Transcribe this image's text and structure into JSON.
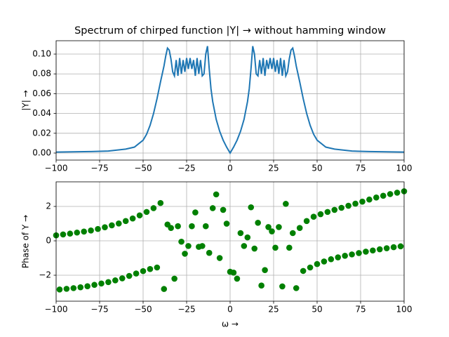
{
  "chart_data": [
    {
      "type": "line",
      "title": "Spectrum of chirped function |Y| → without hamming window",
      "ylabel": "|Y| →",
      "x": [
        -100,
        -80,
        -70,
        -60,
        -55,
        -50,
        -48,
        -46,
        -44,
        -42,
        -40,
        -38,
        -37,
        -36,
        -35,
        -34,
        -33,
        -32,
        -31,
        -30,
        -29,
        -28,
        -27,
        -26,
        -25,
        -24,
        -23,
        -22,
        -21,
        -20,
        -19,
        -18,
        -17,
        -16,
        -15,
        -14,
        -13,
        -12,
        -11,
        -10,
        -8,
        -6,
        -4,
        -2,
        0,
        2,
        4,
        6,
        8,
        10,
        11,
        12,
        13,
        14,
        15,
        16,
        17,
        18,
        19,
        20,
        21,
        22,
        23,
        24,
        25,
        26,
        27,
        28,
        29,
        30,
        31,
        32,
        33,
        34,
        35,
        36,
        37,
        38,
        40,
        42,
        44,
        46,
        48,
        50,
        55,
        60,
        70,
        80,
        100
      ],
      "values": [
        0.001,
        0.0015,
        0.002,
        0.004,
        0.006,
        0.013,
        0.019,
        0.028,
        0.04,
        0.055,
        0.072,
        0.088,
        0.098,
        0.106,
        0.104,
        0.095,
        0.082,
        0.078,
        0.094,
        0.078,
        0.096,
        0.08,
        0.094,
        0.082,
        0.096,
        0.085,
        0.096,
        0.085,
        0.094,
        0.078,
        0.096,
        0.08,
        0.094,
        0.078,
        0.08,
        0.1,
        0.108,
        0.085,
        0.065,
        0.052,
        0.034,
        0.022,
        0.013,
        0.006,
        0.0,
        0.006,
        0.013,
        0.022,
        0.034,
        0.052,
        0.065,
        0.085,
        0.108,
        0.1,
        0.08,
        0.078,
        0.094,
        0.08,
        0.096,
        0.078,
        0.094,
        0.085,
        0.096,
        0.085,
        0.096,
        0.082,
        0.094,
        0.08,
        0.096,
        0.078,
        0.094,
        0.078,
        0.082,
        0.095,
        0.104,
        0.106,
        0.098,
        0.088,
        0.072,
        0.055,
        0.04,
        0.028,
        0.019,
        0.013,
        0.006,
        0.004,
        0.002,
        0.0015,
        0.001
      ],
      "color": "#1f77b4",
      "xlim": [
        -100,
        100
      ],
      "xticks": [
        {
          "value": -100,
          "label": "−100"
        },
        {
          "value": -75,
          "label": "−75"
        },
        {
          "value": -50,
          "label": "−50"
        },
        {
          "value": -25,
          "label": "−25"
        },
        0,
        25,
        50,
        75,
        100
      ],
      "ylim": [
        -0.0071,
        0.1135
      ],
      "yticks": [
        {
          "value": 0,
          "label": "0.00"
        },
        {
          "value": 0.02,
          "label": "0.02"
        },
        {
          "value": 0.04,
          "label": "0.04"
        },
        {
          "value": 0.06,
          "label": "0.06"
        },
        {
          "value": 0.08,
          "label": "0.08"
        },
        {
          "value": 0.1,
          "label": "0.10"
        }
      ],
      "grid": true
    },
    {
      "type": "scatter",
      "ylabel": "Phase of Y →",
      "xlabel": "ω →",
      "x": [
        -100,
        -98,
        -96,
        -94,
        -92,
        -90,
        -88,
        -86,
        -84,
        -82,
        -80,
        -78,
        -76,
        -74,
        -72,
        -70,
        -68,
        -66,
        -64,
        -62,
        -60,
        -58,
        -56,
        -54,
        -52,
        -50,
        -48,
        -46,
        -44,
        -42,
        -40,
        -38,
        -36,
        -34,
        -32,
        -30,
        -28,
        -26,
        -24,
        -22,
        -20,
        -18,
        -16,
        -14,
        -12,
        -10,
        -8,
        -6,
        -4,
        -2,
        0,
        2,
        4,
        6,
        8,
        10,
        12,
        14,
        16,
        18,
        20,
        22,
        24,
        26,
        28,
        30,
        32,
        34,
        36,
        38,
        40,
        42,
        44,
        46,
        48,
        50,
        52,
        54,
        56,
        58,
        60,
        62,
        64,
        66,
        68,
        70,
        72,
        74,
        76,
        78,
        80,
        82,
        84,
        86,
        88,
        90,
        92,
        94,
        96,
        98,
        100
      ],
      "values": [
        0.32,
        -2.83,
        0.37,
        -2.79,
        0.42,
        -2.75,
        0.48,
        -2.7,
        0.54,
        -2.64,
        0.6,
        -2.56,
        0.69,
        -2.48,
        0.79,
        -2.4,
        0.9,
        -2.3,
        1.01,
        -2.18,
        1.15,
        -2.04,
        1.3,
        -1.9,
        1.48,
        -1.76,
        1.68,
        -1.64,
        1.9,
        -1.55,
        2.2,
        -2.8,
        0.95,
        0.75,
        -2.2,
        0.85,
        -0.05,
        -0.75,
        -0.3,
        0.85,
        1.65,
        -0.35,
        -0.3,
        0.85,
        -0.7,
        1.9,
        2.7,
        -1.0,
        1.8,
        1.0,
        -1.8,
        -1.85,
        -2.2,
        0.45,
        -0.3,
        0.2,
        1.95,
        -0.45,
        1.05,
        -2.6,
        -1.7,
        0.8,
        0.55,
        -0.4,
        0.8,
        -2.65,
        2.15,
        -0.4,
        0.45,
        -2.75,
        0.75,
        -1.75,
        1.15,
        -1.55,
        1.4,
        -1.35,
        1.55,
        -1.2,
        1.68,
        -1.07,
        1.8,
        -0.96,
        1.92,
        -0.87,
        2.04,
        -0.79,
        2.16,
        -0.71,
        2.28,
        -0.63,
        2.4,
        -0.56,
        2.52,
        -0.49,
        2.62,
        -0.43,
        2.72,
        -0.37,
        2.8,
        -0.32,
        2.88
      ],
      "color": "#008000",
      "xlim": [
        -100,
        100
      ],
      "xticks": [
        {
          "value": -100,
          "label": "−100"
        },
        {
          "value": -75,
          "label": "−75"
        },
        {
          "value": -50,
          "label": "−50"
        },
        {
          "value": -25,
          "label": "−25"
        },
        0,
        25,
        50,
        75,
        100
      ],
      "ylim": [
        -3.51,
        3.43
      ],
      "yticks": [
        {
          "value": -2,
          "label": "−2"
        },
        0,
        2
      ],
      "grid": true
    }
  ]
}
